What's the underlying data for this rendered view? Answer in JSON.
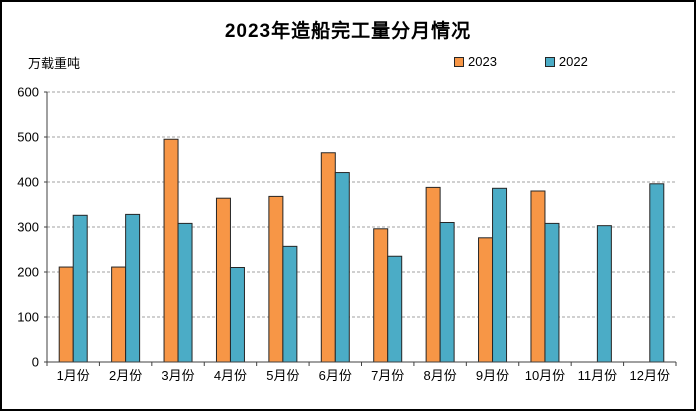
{
  "chart_data": {
    "type": "bar",
    "title": "2023年造船完工量分月情况",
    "unit_label": "万载重吨",
    "categories": [
      "1月份",
      "2月份",
      "3月份",
      "4月份",
      "5月份",
      "6月份",
      "7月份",
      "8月份",
      "9月份",
      "10月份",
      "11月份",
      "12月份"
    ],
    "series": [
      {
        "name": "2023",
        "color": "#F79646",
        "values": [
          211,
          211,
          495,
          364,
          368,
          465,
          296,
          388,
          276,
          380,
          null,
          null
        ]
      },
      {
        "name": "2022",
        "color": "#4BACC6",
        "values": [
          326,
          328,
          308,
          210,
          257,
          421,
          235,
          310,
          386,
          308,
          303,
          396
        ]
      }
    ],
    "ylim": [
      0,
      600
    ],
    "yticks": [
      0,
      100,
      200,
      300,
      400,
      500,
      600
    ],
    "xlabel": "",
    "ylabel": "万载重吨",
    "grid": "horizontal-dashed",
    "legend_position": "top-right",
    "bar_border_color": "#262626",
    "gridline_color": "#A0A0A0",
    "axis_color": "#404040",
    "text_color": "#000000",
    "background_color": "#FFFFFF"
  }
}
